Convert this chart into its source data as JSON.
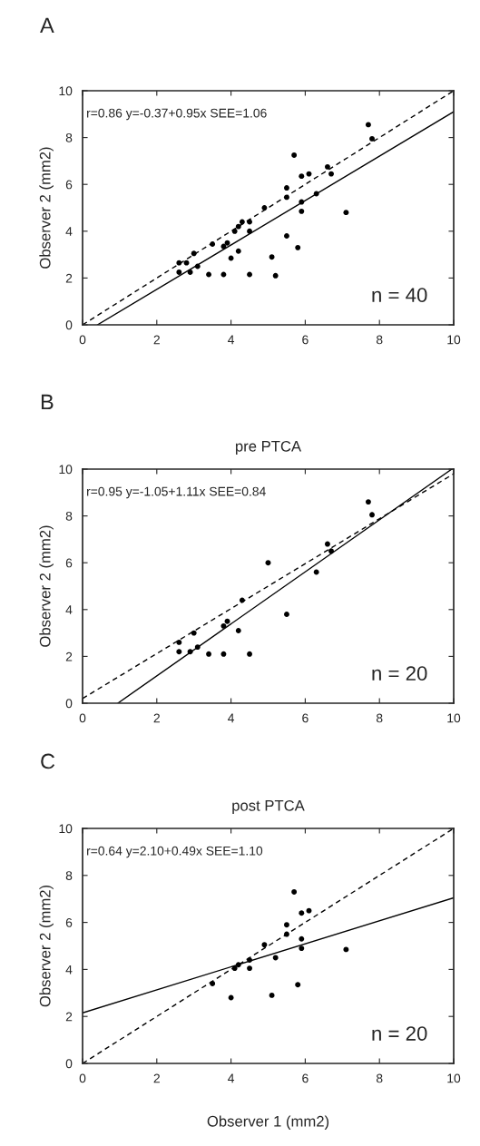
{
  "chart_data": [
    {
      "type": "scatter",
      "ylabel": "Observer 2 (mm2)",
      "xlim": [
        0,
        10
      ],
      "ylim": [
        0,
        10
      ],
      "xticks": [
        0,
        2,
        4,
        6,
        8,
        10
      ],
      "yticks": [
        0,
        2,
        4,
        6,
        8,
        10
      ],
      "annotations": [
        "A",
        "r=0.86 y=-0.37+0.95x SEE=1.06",
        "n = 40"
      ],
      "series": [
        {
          "type": "scatter",
          "color": "#000000",
          "marker": "circle",
          "x": [
            2.6,
            2.8,
            3.0,
            2.6,
            2.9,
            3.1,
            3.4,
            3.8,
            4.5,
            5.2,
            3.5,
            3.8,
            3.9,
            4.0,
            4.2,
            4.1,
            4.2,
            4.3,
            4.5,
            4.5,
            4.9,
            5.1,
            5.5,
            5.8,
            5.5,
            5.5,
            5.7,
            5.9,
            6.1,
            5.9,
            5.9,
            6.3,
            6.6,
            6.7,
            7.1,
            7.7,
            7.8
          ],
          "values": [
            2.65,
            2.65,
            3.05,
            2.25,
            2.25,
            2.5,
            2.15,
            2.15,
            2.15,
            2.1,
            3.45,
            3.35,
            3.5,
            2.85,
            3.15,
            4.0,
            4.2,
            4.4,
            4.4,
            4.0,
            5.0,
            2.9,
            3.8,
            3.3,
            5.85,
            5.45,
            7.25,
            6.35,
            6.45,
            5.25,
            4.85,
            5.6,
            6.75,
            6.45,
            4.8,
            8.55,
            7.95
          ]
        },
        {
          "type": "line",
          "color": "#000000",
          "line_style": "solid",
          "x": [
            0.4,
            10
          ],
          "values": [
            0,
            9.1
          ]
        },
        {
          "type": "line",
          "color": "#000000",
          "line_style": "dashed",
          "x": [
            0,
            10
          ],
          "values": [
            0,
            10
          ]
        }
      ]
    },
    {
      "type": "scatter",
      "title": "pre PTCA",
      "ylabel": "Observer 2 (mm2)",
      "xlim": [
        0,
        10
      ],
      "ylim": [
        0,
        10
      ],
      "xticks": [
        0,
        2,
        4,
        6,
        8,
        10
      ],
      "yticks": [
        0,
        2,
        4,
        6,
        8,
        10
      ],
      "annotations": [
        "B",
        "r=0.95 y=-1.05+1.11x SEE=0.84",
        "n = 20"
      ],
      "series": [
        {
          "type": "scatter",
          "color": "#000000",
          "marker": "circle",
          "x": [
            2.6,
            2.6,
            2.9,
            3.0,
            3.1,
            3.4,
            3.8,
            4.5,
            3.8,
            3.9,
            4.2,
            4.3,
            5.0,
            5.5,
            6.3,
            6.6,
            6.7,
            7.7,
            7.8
          ],
          "values": [
            2.6,
            2.2,
            2.2,
            3.0,
            2.4,
            2.1,
            2.1,
            2.1,
            3.3,
            3.5,
            3.1,
            4.4,
            6.0,
            3.8,
            5.6,
            6.8,
            6.5,
            8.6,
            8.05
          ]
        },
        {
          "type": "line",
          "color": "#000000",
          "line_style": "solid",
          "x": [
            0.95,
            9.95
          ],
          "values": [
            0,
            10
          ]
        },
        {
          "type": "line",
          "color": "#000000",
          "line_style": "dashed",
          "x": [
            0,
            10
          ],
          "values": [
            0.2,
            9.8
          ]
        }
      ]
    },
    {
      "type": "scatter",
      "title": "post PTCA",
      "xlabel": "Observer 1 (mm2)",
      "ylabel": "Observer 2 (mm2)",
      "xlim": [
        0,
        10
      ],
      "ylim": [
        0,
        10
      ],
      "xticks": [
        0,
        2,
        4,
        6,
        8,
        10
      ],
      "yticks": [
        0,
        2,
        4,
        6,
        8,
        10
      ],
      "annotations": [
        "C",
        "r=0.64 y=2.10+0.49x SEE=1.10",
        "n = 20"
      ],
      "series": [
        {
          "type": "scatter",
          "color": "#000000",
          "marker": "circle",
          "x": [
            3.5,
            4.0,
            4.1,
            4.2,
            4.5,
            4.5,
            4.9,
            5.1,
            5.2,
            5.5,
            5.5,
            5.7,
            5.8,
            5.9,
            6.1,
            5.9,
            5.9,
            7.1
          ],
          "values": [
            3.4,
            2.8,
            4.05,
            4.2,
            4.4,
            4.05,
            5.05,
            2.9,
            4.5,
            5.9,
            5.5,
            7.3,
            3.35,
            6.4,
            6.5,
            5.3,
            4.9,
            4.85
          ]
        },
        {
          "type": "line",
          "color": "#000000",
          "line_style": "solid",
          "x": [
            0,
            10
          ],
          "values": [
            2.15,
            7.05
          ]
        },
        {
          "type": "line",
          "color": "#000000",
          "line_style": "dashed",
          "x": [
            0,
            10
          ],
          "values": [
            0,
            10
          ]
        }
      ]
    }
  ]
}
